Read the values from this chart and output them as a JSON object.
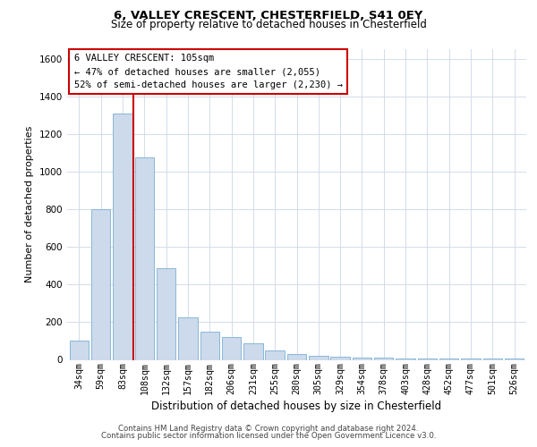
{
  "title1": "6, VALLEY CRESCENT, CHESTERFIELD, S41 0EY",
  "title2": "Size of property relative to detached houses in Chesterfield",
  "xlabel": "Distribution of detached houses by size in Chesterfield",
  "ylabel": "Number of detached properties",
  "footnote1": "Contains HM Land Registry data © Crown copyright and database right 2024.",
  "footnote2": "Contains public sector information licensed under the Open Government Licence v3.0.",
  "annotation_title": "6 VALLEY CRESCENT: 105sqm",
  "annotation_line1": "← 47% of detached houses are smaller (2,055)",
  "annotation_line2": "52% of semi-detached houses are larger (2,230) →",
  "bar_color": "#ccdaeb",
  "bar_edge_color": "#7aafd4",
  "vline_color": "#cc0000",
  "categories": [
    "34sqm",
    "59sqm",
    "83sqm",
    "108sqm",
    "132sqm",
    "157sqm",
    "182sqm",
    "206sqm",
    "231sqm",
    "255sqm",
    "280sqm",
    "305sqm",
    "329sqm",
    "354sqm",
    "378sqm",
    "403sqm",
    "428sqm",
    "452sqm",
    "477sqm",
    "501sqm",
    "526sqm"
  ],
  "values": [
    100,
    800,
    1310,
    1075,
    485,
    225,
    150,
    120,
    90,
    50,
    30,
    20,
    15,
    10,
    10,
    8,
    8,
    8,
    8,
    8,
    8
  ],
  "ylim": [
    0,
    1650
  ],
  "yticks": [
    0,
    200,
    400,
    600,
    800,
    1000,
    1200,
    1400,
    1600
  ],
  "vline_x": 2.5,
  "background_color": "#ffffff",
  "grid_color": "#d4dce8"
}
